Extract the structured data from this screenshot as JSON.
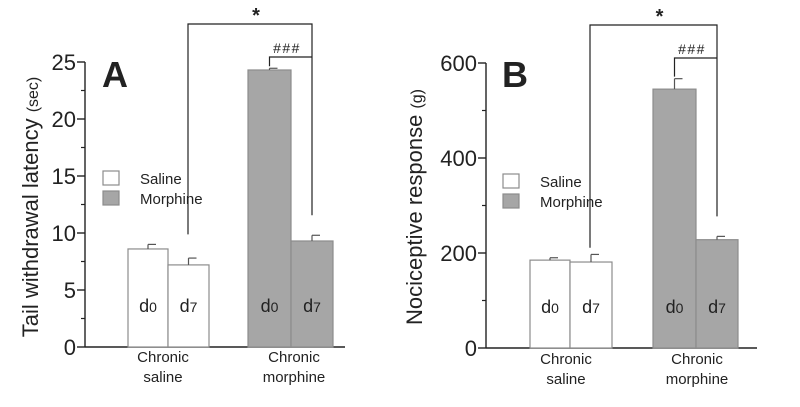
{
  "chart_data": [
    {
      "type": "bar",
      "panel_label": "A",
      "ylabel": "Tail withdrawal latency",
      "ylabel_unit": "(sec)",
      "ylim": [
        0,
        25
      ],
      "yticks": [
        "0",
        "5",
        "10",
        "15",
        "20",
        "25"
      ],
      "groups": [
        "Chronic saline",
        "Chronic morphine"
      ],
      "group_lines": [
        [
          "Chronic",
          "saline"
        ],
        [
          "Chronic",
          "morphine"
        ]
      ],
      "bar_labels": [
        "d0",
        "d7",
        "d0",
        "d7"
      ],
      "bar_label_parts": [
        [
          "d",
          "0"
        ],
        [
          "d",
          "7"
        ],
        [
          "d",
          "0"
        ],
        [
          "d",
          "7"
        ]
      ],
      "values": [
        8.6,
        7.2,
        24.3,
        9.3
      ],
      "errors": [
        0.4,
        0.6,
        0.15,
        0.5
      ],
      "series_by_bar": [
        "saline",
        "saline",
        "morphine",
        "morphine"
      ],
      "legend": [
        {
          "name": "Saline",
          "color": "#ffffff"
        },
        {
          "name": "Morphine",
          "color": "#a6a6a6"
        }
      ],
      "significance": {
        "outer": {
          "label": "*",
          "from_group": "Chronic saline",
          "to_bar": 3
        },
        "inner": {
          "label": "###",
          "from_bar": 2,
          "to_bar": 3
        }
      }
    },
    {
      "type": "bar",
      "panel_label": "B",
      "ylabel": "Nociceptive response",
      "ylabel_unit": "(g)",
      "ylim": [
        0,
        600
      ],
      "yticks": [
        "0",
        "200",
        "400",
        "600"
      ],
      "groups": [
        "Chronic saline",
        "Chronic morphine"
      ],
      "group_lines": [
        [
          "Chronic",
          "saline"
        ],
        [
          "Chronic",
          "morphine"
        ]
      ],
      "bar_labels": [
        "d0",
        "d7",
        "d0",
        "d7"
      ],
      "bar_label_parts": [
        [
          "d",
          "0"
        ],
        [
          "d",
          "7"
        ],
        [
          "d",
          "0"
        ],
        [
          "d",
          "7"
        ]
      ],
      "values": [
        185,
        181,
        545,
        228
      ],
      "errors": [
        5,
        16,
        22,
        7
      ],
      "series_by_bar": [
        "saline",
        "saline",
        "morphine",
        "morphine"
      ],
      "legend": [
        {
          "name": "Saline",
          "color": "#ffffff"
        },
        {
          "name": "Morphine",
          "color": "#a6a6a6"
        }
      ],
      "significance": {
        "outer": {
          "label": "*",
          "from_group": "Chronic saline",
          "to_bar": 3
        },
        "inner": {
          "label": "###",
          "from_bar": 2,
          "to_bar": 3
        }
      }
    }
  ],
  "colors": {
    "saline": "#ffffff",
    "morphine": "#a6a6a6",
    "axis": "#222222",
    "bar_edge": "#8c8c8c"
  }
}
